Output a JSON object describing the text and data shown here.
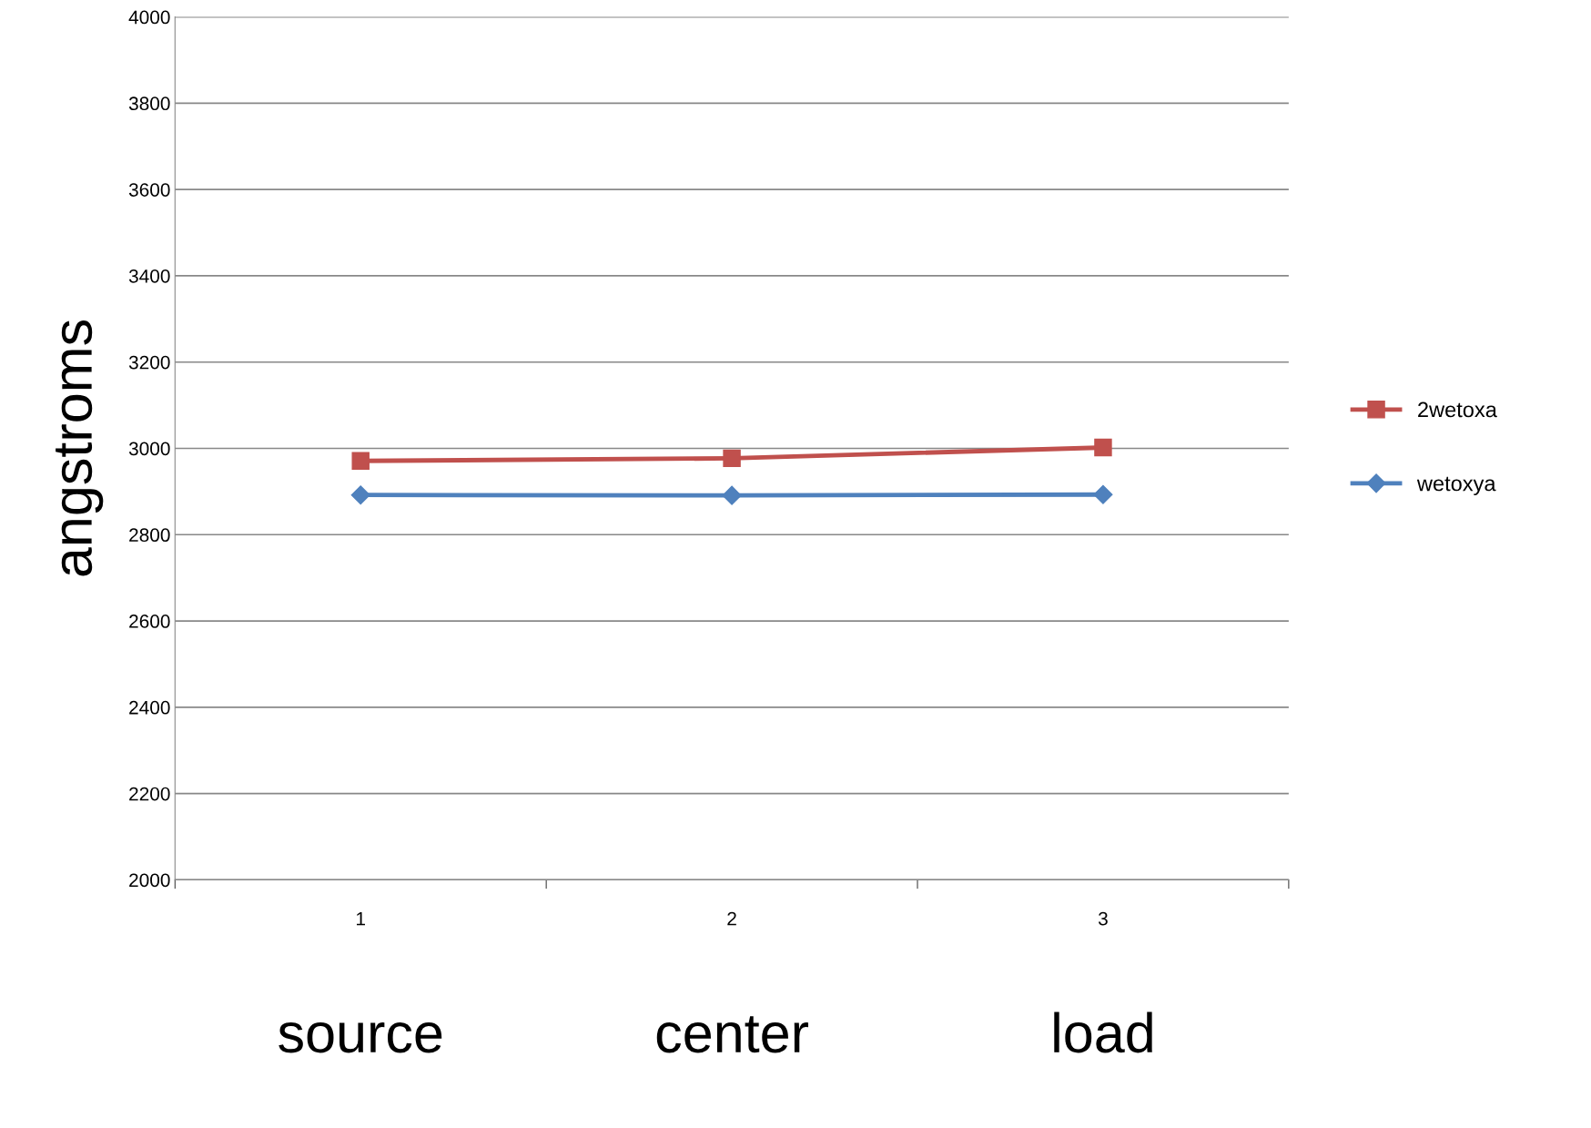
{
  "chart_data": {
    "type": "line",
    "ylabel": "angstroms",
    "categories": [
      "1",
      "2",
      "3"
    ],
    "series": [
      {
        "name": "2wetoxa",
        "color": "#c0504d",
        "values": [
          2971,
          2977,
          3002
        ],
        "marker": "square"
      },
      {
        "name": "wetoxya",
        "color": "#4f81bd",
        "values": [
          2892,
          2891,
          2893
        ],
        "marker": "diamond"
      }
    ],
    "ylim": [
      2000,
      4000
    ],
    "yticks": [
      2000,
      2200,
      2400,
      2600,
      2800,
      3000,
      3200,
      3400,
      3600,
      3800,
      4000
    ],
    "grid": "y",
    "legend": "right",
    "line_style": "solid",
    "annotations": [
      "source",
      "center",
      "load"
    ]
  }
}
